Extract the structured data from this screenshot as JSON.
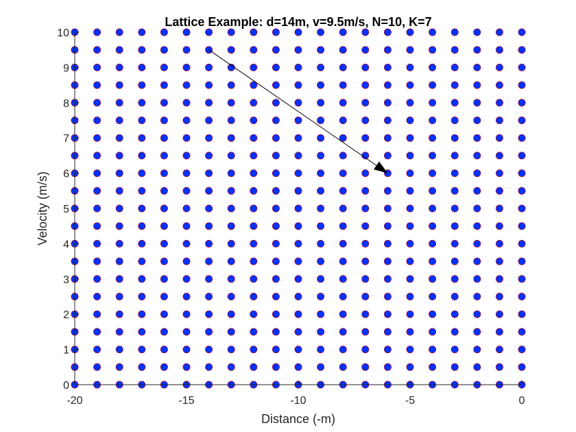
{
  "chart_data": {
    "type": "scatter",
    "title": "Lattice Example: d=14m, v=9.5m/s, N=10, K=7",
    "xlabel": "Distance (-m)",
    "ylabel": "Velocity (m/s)",
    "xlim": [
      -20,
      0
    ],
    "ylim": [
      0,
      10
    ],
    "x_ticks": [
      -20,
      -15,
      -10,
      -5,
      0
    ],
    "y_ticks": [
      0,
      1,
      2,
      3,
      4,
      5,
      6,
      7,
      8,
      9,
      10
    ],
    "grid": false,
    "lattice": {
      "x_start": -20,
      "x_end": 0,
      "x_step": 1,
      "y_start": 0,
      "y_end": 10,
      "y_step": 0.5,
      "marker_color": "#0033ff",
      "outline_color": "#cc0000"
    },
    "arrow": {
      "from": [
        -14,
        9.5
      ],
      "to": [
        -6,
        6
      ],
      "color": "#000000"
    }
  }
}
